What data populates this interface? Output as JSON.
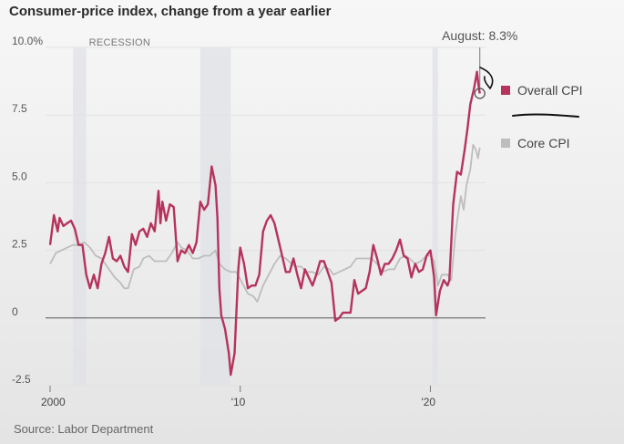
{
  "chart_data": {
    "type": "line",
    "title": "Consumer-price index, change from a year earlier",
    "source": "Source: Labor Department",
    "ylim": [
      -2.5,
      10.0
    ],
    "y_ticks": [
      {
        "value": 10.0,
        "label": "10.0%"
      },
      {
        "value": 7.5,
        "label": "7.5"
      },
      {
        "value": 5.0,
        "label": "5.0"
      },
      {
        "value": 2.5,
        "label": "2.5"
      },
      {
        "value": 0,
        "label": "0"
      },
      {
        "value": -2.5,
        "label": "-2.5"
      }
    ],
    "xlim": [
      2000,
      2022.9
    ],
    "x_ticks": [
      {
        "value": 2000,
        "label": "2000"
      },
      {
        "value": 2010,
        "label": "'10"
      },
      {
        "value": 2020,
        "label": "'20"
      }
    ],
    "recessions": [
      {
        "start": 2001.2,
        "end": 2001.9,
        "label": "RECESSION"
      },
      {
        "start": 2007.9,
        "end": 2009.5,
        "label": ""
      },
      {
        "start": 2020.1,
        "end": 2020.4,
        "label": ""
      }
    ],
    "annotation": {
      "label": "August: 8.3%",
      "x": 2022.6,
      "y": 8.3
    },
    "series": [
      {
        "name": "Overall CPI",
        "color": "#b5335c",
        "points": [
          [
            2000.0,
            2.7
          ],
          [
            2000.2,
            3.8
          ],
          [
            2000.4,
            3.2
          ],
          [
            2000.5,
            3.7
          ],
          [
            2000.7,
            3.4
          ],
          [
            2000.9,
            3.5
          ],
          [
            2001.1,
            3.6
          ],
          [
            2001.3,
            3.3
          ],
          [
            2001.5,
            2.7
          ],
          [
            2001.7,
            2.7
          ],
          [
            2001.9,
            1.6
          ],
          [
            2002.1,
            1.1
          ],
          [
            2002.3,
            1.6
          ],
          [
            2002.5,
            1.1
          ],
          [
            2002.7,
            2.0
          ],
          [
            2002.9,
            2.4
          ],
          [
            2003.1,
            3.0
          ],
          [
            2003.3,
            2.2
          ],
          [
            2003.5,
            2.1
          ],
          [
            2003.7,
            2.3
          ],
          [
            2003.9,
            1.9
          ],
          [
            2004.1,
            1.7
          ],
          [
            2004.3,
            3.1
          ],
          [
            2004.5,
            2.7
          ],
          [
            2004.7,
            3.2
          ],
          [
            2004.9,
            3.3
          ],
          [
            2005.1,
            3.0
          ],
          [
            2005.3,
            3.5
          ],
          [
            2005.5,
            3.2
          ],
          [
            2005.7,
            4.7
          ],
          [
            2005.8,
            3.5
          ],
          [
            2005.9,
            4.3
          ],
          [
            2006.1,
            3.6
          ],
          [
            2006.3,
            4.2
          ],
          [
            2006.5,
            4.1
          ],
          [
            2006.7,
            2.1
          ],
          [
            2006.9,
            2.5
          ],
          [
            2007.1,
            2.4
          ],
          [
            2007.3,
            2.7
          ],
          [
            2007.5,
            2.4
          ],
          [
            2007.7,
            2.8
          ],
          [
            2007.9,
            4.3
          ],
          [
            2008.1,
            4.0
          ],
          [
            2008.3,
            4.2
          ],
          [
            2008.5,
            5.6
          ],
          [
            2008.7,
            4.9
          ],
          [
            2008.8,
            3.7
          ],
          [
            2008.9,
            1.1
          ],
          [
            2009.0,
            0.1
          ],
          [
            2009.2,
            -0.4
          ],
          [
            2009.4,
            -1.3
          ],
          [
            2009.5,
            -2.1
          ],
          [
            2009.7,
            -1.3
          ],
          [
            2009.9,
            1.8
          ],
          [
            2010.0,
            2.6
          ],
          [
            2010.2,
            2.0
          ],
          [
            2010.4,
            1.1
          ],
          [
            2010.6,
            1.2
          ],
          [
            2010.8,
            1.2
          ],
          [
            2011.0,
            1.6
          ],
          [
            2011.2,
            3.2
          ],
          [
            2011.4,
            3.6
          ],
          [
            2011.6,
            3.8
          ],
          [
            2011.8,
            3.5
          ],
          [
            2012.0,
            2.9
          ],
          [
            2012.2,
            2.3
          ],
          [
            2012.4,
            1.7
          ],
          [
            2012.6,
            1.7
          ],
          [
            2012.8,
            2.2
          ],
          [
            2013.0,
            1.6
          ],
          [
            2013.2,
            1.1
          ],
          [
            2013.4,
            1.8
          ],
          [
            2013.6,
            1.5
          ],
          [
            2013.8,
            1.2
          ],
          [
            2014.0,
            1.6
          ],
          [
            2014.2,
            2.1
          ],
          [
            2014.4,
            2.1
          ],
          [
            2014.6,
            1.7
          ],
          [
            2014.8,
            1.3
          ],
          [
            2015.0,
            -0.1
          ],
          [
            2015.2,
            0.0
          ],
          [
            2015.4,
            0.2
          ],
          [
            2015.6,
            0.2
          ],
          [
            2015.8,
            0.2
          ],
          [
            2016.0,
            1.4
          ],
          [
            2016.2,
            0.9
          ],
          [
            2016.4,
            1.0
          ],
          [
            2016.6,
            1.1
          ],
          [
            2016.8,
            1.7
          ],
          [
            2017.0,
            2.7
          ],
          [
            2017.2,
            2.2
          ],
          [
            2017.4,
            1.6
          ],
          [
            2017.6,
            2.0
          ],
          [
            2017.8,
            2.0
          ],
          [
            2018.0,
            2.2
          ],
          [
            2018.2,
            2.5
          ],
          [
            2018.4,
            2.9
          ],
          [
            2018.6,
            2.3
          ],
          [
            2018.8,
            2.2
          ],
          [
            2019.0,
            1.5
          ],
          [
            2019.2,
            2.0
          ],
          [
            2019.4,
            1.7
          ],
          [
            2019.6,
            1.8
          ],
          [
            2019.8,
            2.3
          ],
          [
            2020.0,
            2.5
          ],
          [
            2020.2,
            1.5
          ],
          [
            2020.3,
            0.1
          ],
          [
            2020.5,
            1.0
          ],
          [
            2020.7,
            1.4
          ],
          [
            2020.9,
            1.2
          ],
          [
            2021.0,
            1.4
          ],
          [
            2021.2,
            4.2
          ],
          [
            2021.4,
            5.4
          ],
          [
            2021.6,
            5.3
          ],
          [
            2021.8,
            6.2
          ],
          [
            2021.95,
            7.0
          ],
          [
            2022.1,
            7.9
          ],
          [
            2022.3,
            8.5
          ],
          [
            2022.45,
            9.1
          ],
          [
            2022.55,
            8.5
          ],
          [
            2022.6,
            8.3
          ]
        ]
      },
      {
        "name": "Core CPI",
        "color": "#bdbdbd",
        "points": [
          [
            2000.0,
            2.0
          ],
          [
            2000.3,
            2.4
          ],
          [
            2000.6,
            2.5
          ],
          [
            2000.9,
            2.6
          ],
          [
            2001.2,
            2.7
          ],
          [
            2001.5,
            2.7
          ],
          [
            2001.8,
            2.8
          ],
          [
            2002.1,
            2.6
          ],
          [
            2002.4,
            2.3
          ],
          [
            2002.7,
            2.2
          ],
          [
            2002.9,
            2.0
          ],
          [
            2003.1,
            1.8
          ],
          [
            2003.4,
            1.5
          ],
          [
            2003.7,
            1.3
          ],
          [
            2003.9,
            1.1
          ],
          [
            2004.1,
            1.1
          ],
          [
            2004.4,
            1.8
          ],
          [
            2004.7,
            1.9
          ],
          [
            2004.9,
            2.2
          ],
          [
            2005.2,
            2.3
          ],
          [
            2005.5,
            2.1
          ],
          [
            2005.8,
            2.1
          ],
          [
            2006.1,
            2.1
          ],
          [
            2006.4,
            2.4
          ],
          [
            2006.7,
            2.8
          ],
          [
            2006.9,
            2.6
          ],
          [
            2007.2,
            2.5
          ],
          [
            2007.5,
            2.2
          ],
          [
            2007.8,
            2.2
          ],
          [
            2008.1,
            2.3
          ],
          [
            2008.4,
            2.3
          ],
          [
            2008.7,
            2.5
          ],
          [
            2008.9,
            2.0
          ],
          [
            2009.2,
            1.8
          ],
          [
            2009.5,
            1.7
          ],
          [
            2009.8,
            1.7
          ],
          [
            2010.1,
            1.3
          ],
          [
            2010.4,
            0.9
          ],
          [
            2010.7,
            0.8
          ],
          [
            2010.9,
            0.6
          ],
          [
            2011.2,
            1.2
          ],
          [
            2011.5,
            1.6
          ],
          [
            2011.8,
            2.0
          ],
          [
            2012.1,
            2.3
          ],
          [
            2012.4,
            2.2
          ],
          [
            2012.7,
            2.0
          ],
          [
            2012.9,
            1.9
          ],
          [
            2013.2,
            1.9
          ],
          [
            2013.5,
            1.7
          ],
          [
            2013.8,
            1.7
          ],
          [
            2014.1,
            1.6
          ],
          [
            2014.4,
            1.9
          ],
          [
            2014.7,
            1.8
          ],
          [
            2014.9,
            1.6
          ],
          [
            2015.2,
            1.7
          ],
          [
            2015.5,
            1.8
          ],
          [
            2015.8,
            1.9
          ],
          [
            2016.1,
            2.2
          ],
          [
            2016.4,
            2.2
          ],
          [
            2016.7,
            2.2
          ],
          [
            2016.9,
            2.2
          ],
          [
            2017.2,
            2.0
          ],
          [
            2017.5,
            1.7
          ],
          [
            2017.8,
            1.8
          ],
          [
            2018.1,
            1.8
          ],
          [
            2018.4,
            2.2
          ],
          [
            2018.7,
            2.3
          ],
          [
            2018.9,
            2.2
          ],
          [
            2019.2,
            2.0
          ],
          [
            2019.5,
            2.1
          ],
          [
            2019.8,
            2.3
          ],
          [
            2020.0,
            2.3
          ],
          [
            2020.2,
            2.1
          ],
          [
            2020.4,
            1.2
          ],
          [
            2020.6,
            1.6
          ],
          [
            2020.9,
            1.6
          ],
          [
            2021.1,
            1.4
          ],
          [
            2021.3,
            3.0
          ],
          [
            2021.45,
            3.8
          ],
          [
            2021.6,
            4.5
          ],
          [
            2021.75,
            4.0
          ],
          [
            2021.9,
            4.9
          ],
          [
            2022.1,
            5.5
          ],
          [
            2022.25,
            6.4
          ],
          [
            2022.4,
            6.2
          ],
          [
            2022.5,
            5.9
          ],
          [
            2022.6,
            6.3
          ]
        ]
      }
    ],
    "legend": [
      {
        "name": "Overall CPI",
        "color": "#b5335c"
      },
      {
        "name": "Core CPI",
        "color": "#bdbdbd"
      }
    ]
  }
}
